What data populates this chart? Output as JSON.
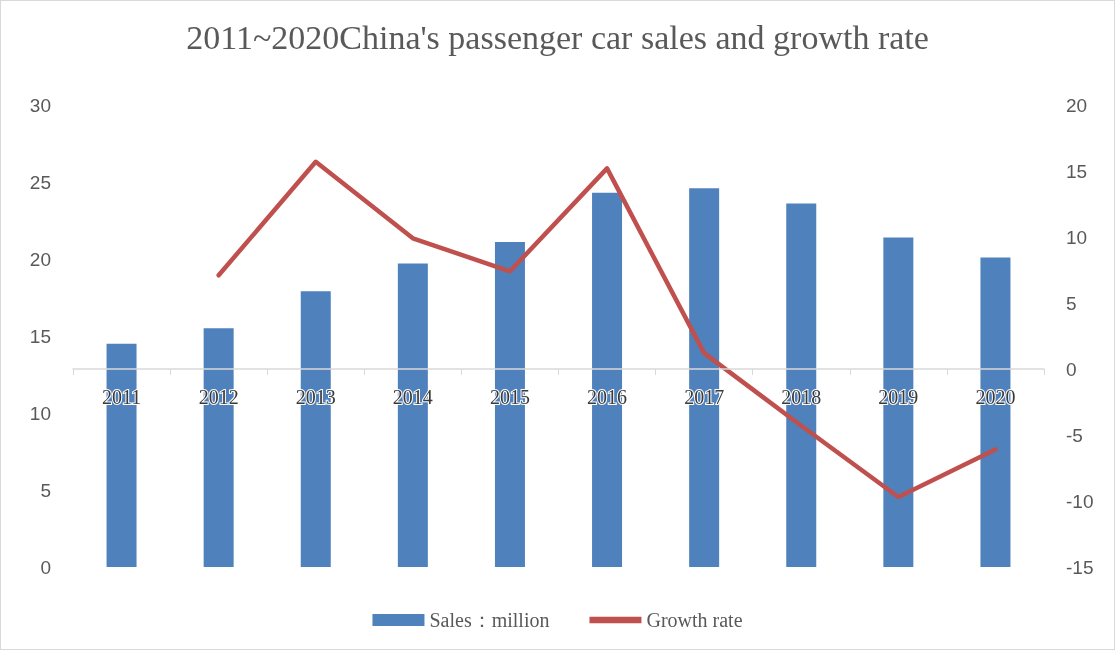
{
  "chart_data": {
    "type": "bar",
    "title": "2011~2020China's passenger car sales and growth rate",
    "categories": [
      "2011",
      "2012",
      "2013",
      "2014",
      "2015",
      "2016",
      "2017",
      "2018",
      "2019",
      "2020"
    ],
    "series": [
      {
        "name": "Sales：million",
        "color": "#4f81bd",
        "values": [
          14.5,
          15.5,
          17.9,
          19.7,
          21.1,
          24.3,
          24.6,
          23.6,
          21.4,
          20.1
        ]
      },
      {
        "name": "Growth rate",
        "type": "line",
        "axis": "y2",
        "color": "#c0504d",
        "values": [
          null,
          7.1,
          15.7,
          9.9,
          7.4,
          15.2,
          1.2,
          -4.3,
          -9.7,
          -6.1
        ]
      }
    ],
    "ylim": [
      0,
      30
    ],
    "yticks": [
      0,
      5,
      10,
      15,
      20,
      25,
      30
    ],
    "y2lim": [
      -15,
      20
    ],
    "y2ticks": [
      -15,
      -10,
      -5,
      0,
      5,
      10,
      15,
      20
    ],
    "marker": "none",
    "legend": "bottom"
  }
}
